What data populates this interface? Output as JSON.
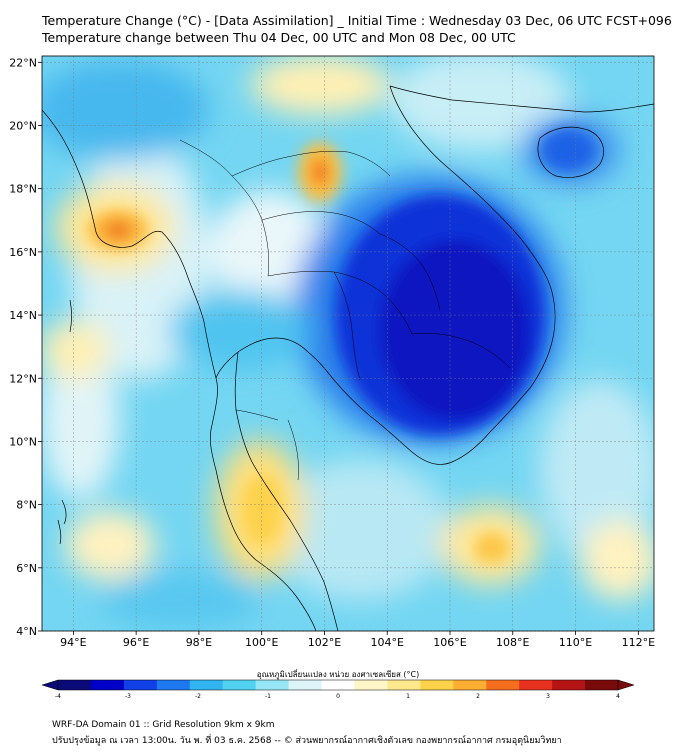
{
  "header": {
    "title_line1": "Temperature Change (°C) - [Data Assimilation] _ Initial Time : Wednesday 03 Dec, 06 UTC FCST+096",
    "title_line2": "Temperature change between Thu 04 Dec, 00 UTC and Mon 08 Dec, 00 UTC"
  },
  "chart_data": {
    "type": "heatmap",
    "title": "Temperature Change (°C) - [Data Assimilation] _ Initial Time : Wednesday 03 Dec, 06 UTC FCST+096",
    "subtitle": "Temperature change between Thu 04 Dec, 00 UTC and Mon 08 Dec, 00 UTC",
    "x_range": [
      93,
      112.5
    ],
    "y_range": [
      4,
      22.2
    ],
    "x_ticks": [
      "94°E",
      "96°E",
      "98°E",
      "100°E",
      "102°E",
      "104°E",
      "106°E",
      "108°E",
      "110°E",
      "112°E"
    ],
    "x_tick_values": [
      94,
      96,
      98,
      100,
      102,
      104,
      106,
      108,
      110,
      112
    ],
    "y_ticks": [
      "22°N",
      "20°N",
      "18°N",
      "16°N",
      "14°N",
      "12°N",
      "10°N",
      "8°N",
      "6°N",
      "4°N"
    ],
    "y_tick_values": [
      22,
      20,
      18,
      16,
      14,
      12,
      10,
      8,
      6,
      4
    ],
    "grid": true,
    "value_range": [
      -4,
      4
    ],
    "colorbar": {
      "label": "อุณหภูมิเปลี่ยนแปลง หน่วย องศาเซลเซียส (°C)",
      "ticks": [
        -4,
        -3,
        -2,
        -1,
        0,
        1,
        2,
        3,
        4
      ],
      "tick_labels": [
        "-4",
        "-3",
        "-2",
        "-1",
        "0",
        "1",
        "2",
        "3",
        "4"
      ],
      "colors": [
        "#0a0a78",
        "#0000c8",
        "#1040e6",
        "#1e78f0",
        "#32b4f0",
        "#50d2f0",
        "#96e6f5",
        "#dcf3f8",
        "#ffffff",
        "#fff6c8",
        "#fee88c",
        "#fdd24b",
        "#fcae32",
        "#f56e1e",
        "#e6321e",
        "#b41414",
        "#780a0a"
      ]
    },
    "features": [
      {
        "name": "cold-core-indochina",
        "lon": 105.8,
        "lat": 13.2,
        "value": -3.0
      },
      {
        "name": "cold-hainan",
        "lon": 110.0,
        "lat": 19.2,
        "value": -2.0
      },
      {
        "name": "warm-myanmar-coast",
        "lon": 95.5,
        "lat": 16.6,
        "value": 2.0
      },
      {
        "name": "warm-northern-laos",
        "lon": 101.8,
        "lat": 18.4,
        "value": 1.8
      },
      {
        "name": "warm-south-thailand",
        "lon": 100.2,
        "lat": 7.5,
        "value": 1.2
      },
      {
        "name": "warm-east-sea",
        "lon": 107.5,
        "lat": 6.5,
        "value": 1.5
      }
    ]
  },
  "footer": {
    "line1": "WRF-DA Domain 01 :: Grid Resolution 9km x 9km",
    "line2": "ปรับปรุงข้อมูล ณ เวลา 13:00น. วัน พ. ที่ 03 ธ.ค. 2568 -- © ส่วนพยากรณ์อากาศเชิงตัวเลข กองพยากรณ์อากาศ กรมอุตุนิยมวิทยา"
  }
}
